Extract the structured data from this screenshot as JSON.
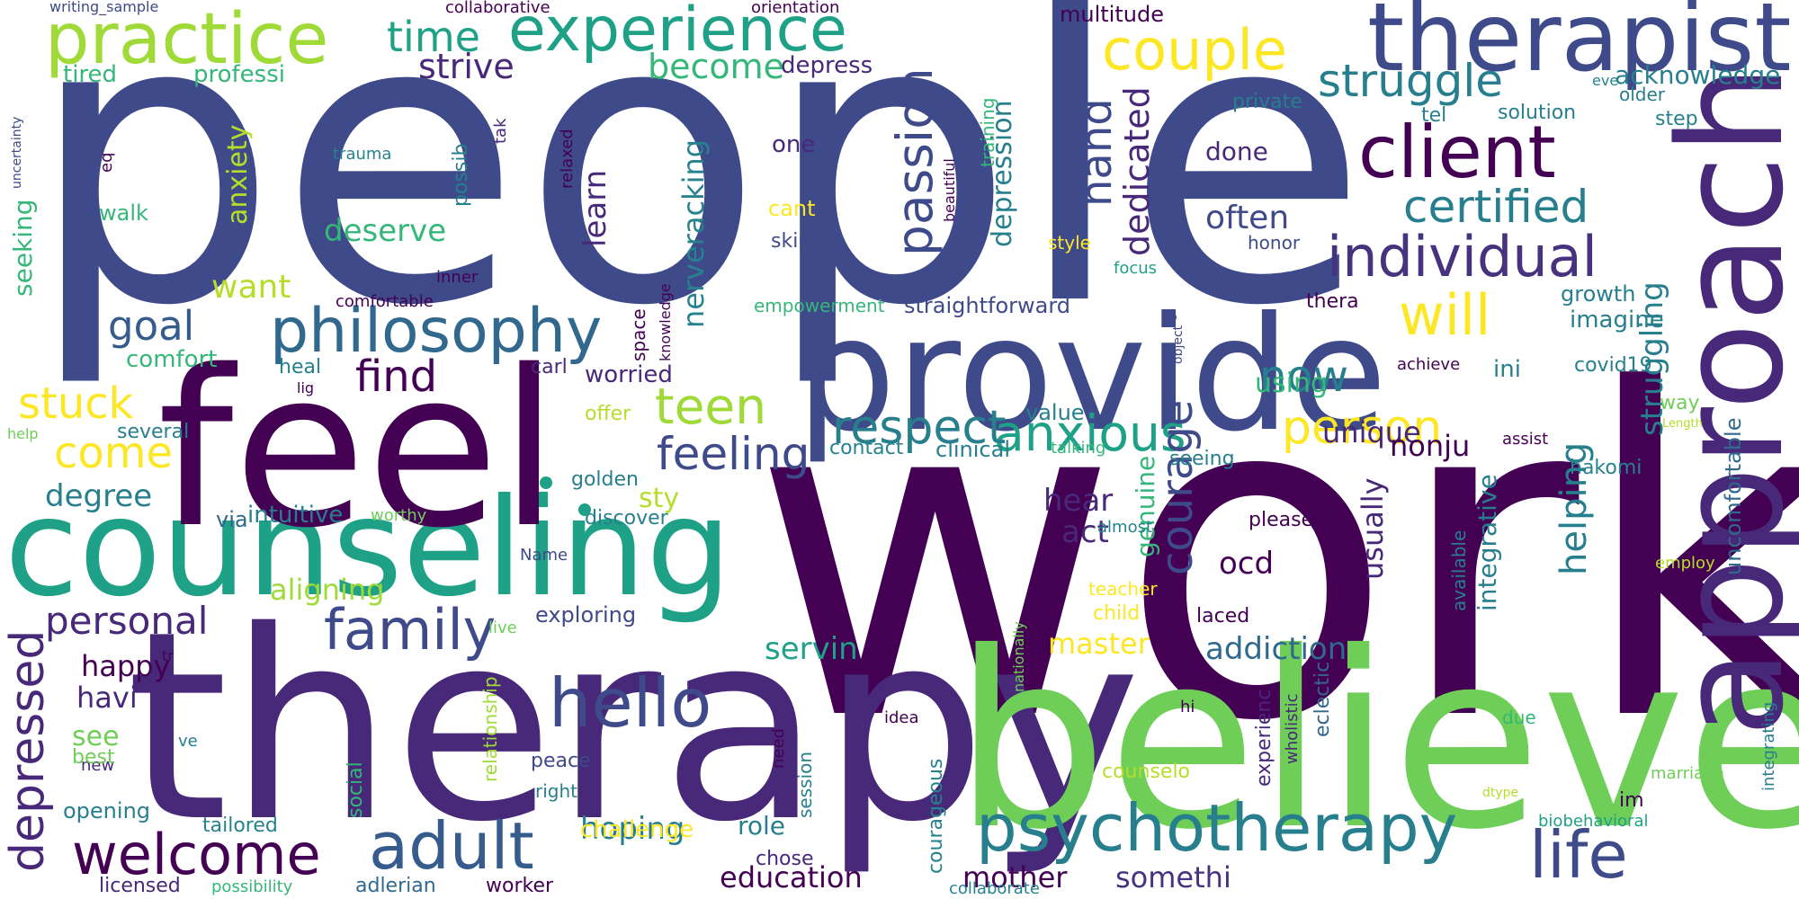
{
  "words": [
    "people",
    "work",
    "therapy",
    "believe",
    "counseling",
    "feel",
    "provide",
    "approach",
    "therapist",
    "practice",
    "experience",
    "client",
    "individual",
    "psychotherapy",
    "welcome",
    "adult",
    "hello",
    "family",
    "philosophy",
    "life",
    "couple",
    "passion",
    "struggle",
    "certified",
    "anxious",
    "respect",
    "feeling",
    "teen",
    "person",
    "courage",
    "will",
    "personal",
    "find",
    "goal",
    "come",
    "stuck",
    "time",
    "strive",
    "become",
    "hand",
    "dedicated",
    "often",
    "now",
    "unique",
    "depressed",
    "happy",
    "degree",
    "anxiety",
    "want",
    "deserve",
    "seeking",
    "walk",
    "comfort",
    "tired",
    "professi",
    "learn",
    "nerveracking",
    "depression",
    "struggling",
    "helping",
    "intuitive",
    "sty",
    "hear",
    "genuine",
    "act",
    "ocd",
    "usually",
    "addiction",
    "master",
    "servin",
    "aligning",
    "havi",
    "see",
    "opening",
    "tailored",
    "education",
    "hoping",
    "challenge",
    "role",
    "mother",
    "somethi",
    "worker",
    "adlerian",
    "licensed",
    "possibility",
    "collaborate",
    "courageous",
    "chose",
    "right",
    "social",
    "relationship",
    "session",
    "counselo",
    "eclectic",
    "wholistic",
    "experienc",
    "integrative",
    "available",
    "integrating",
    "uncomfortable",
    "biobehavioral",
    "marriage",
    "im",
    "due",
    "employ",
    "hakomi",
    "assist",
    "nonju",
    "ini",
    "way",
    "growth",
    "imagine",
    "acknowledge",
    "step",
    "solution",
    "older",
    "eve",
    "tel",
    "private",
    "depress",
    "training",
    "beautiful",
    "done",
    "one",
    "cant",
    "skin",
    "honor",
    "style",
    "focus",
    "empowerment",
    "straightforward",
    "thera",
    "object",
    "achieve",
    "covid19",
    "using",
    "value",
    "clinical",
    "contact",
    "talking",
    "seeing",
    "golden",
    "offer",
    "discover",
    "via",
    "several",
    "lig",
    "heal",
    "carl",
    "worried",
    "space",
    "knowledge",
    "relaxed",
    "possib",
    "tak",
    "trauma",
    "eq",
    "inner",
    "comfortable",
    "multitude",
    "orientation",
    "collaborative",
    "writing_sample",
    "uncertainty",
    "help",
    "worthy",
    "Name",
    "live",
    "tr",
    "new",
    "best",
    "ve",
    "peace",
    "need",
    "idea",
    "exploring",
    "laced",
    "child",
    "teacher",
    "almost",
    "please",
    "hi",
    "nationally",
    "dtype",
    "Length"
  ],
  "colors": {
    "background": "#ffffff",
    "palette": [
      "#46327e",
      "#365c8d",
      "#277f8e",
      "#1fa187",
      "#4ac16d",
      "#a0da39",
      "#fde725",
      "#440154",
      "#3e4a89",
      "#31688e",
      "#26828e",
      "#35b779",
      "#6ece58",
      "#b5de2b",
      "#482878"
    ]
  }
}
